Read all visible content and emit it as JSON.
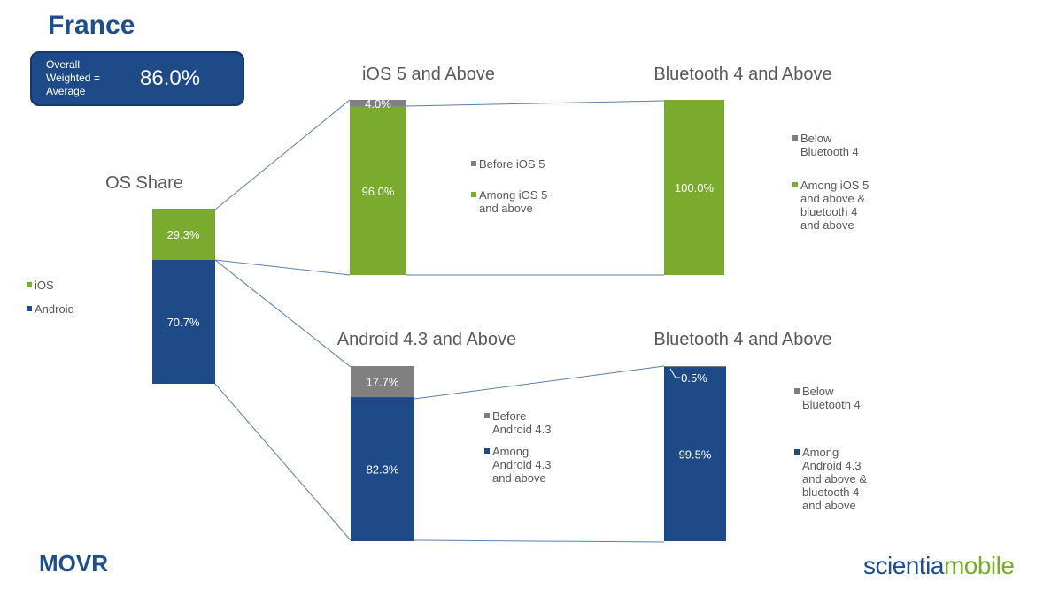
{
  "page": {
    "country": "France",
    "overall_label_lines": [
      "Overall",
      "Weighted =",
      "Average"
    ],
    "overall_value": "86.0%",
    "footer_brand": "MOVR",
    "logo_part1": "scientia",
    "logo_part2": "mobile"
  },
  "colors": {
    "ios": "#7aaa2e",
    "android": "#1e4b87",
    "below": "#808080",
    "connector": "#5b7fae"
  },
  "chart_data": [
    {
      "type": "bar",
      "title": "OS Share",
      "categories": [
        "OS Share"
      ],
      "series": [
        {
          "name": "iOS",
          "values": [
            29.3
          ],
          "label": "29.3%"
        },
        {
          "name": "Android",
          "values": [
            70.7
          ],
          "label": "70.7%"
        }
      ],
      "legend_position": "left"
    },
    {
      "type": "bar",
      "title": "iOS 5 and Above",
      "series": [
        {
          "name": "Before iOS 5",
          "values": [
            4.0
          ],
          "label": "4.0%"
        },
        {
          "name": "Among  iOS 5 and above",
          "values": [
            96.0
          ],
          "label": "96.0%"
        }
      ],
      "legend_position": "right"
    },
    {
      "type": "bar",
      "title": "Bluetooth 4 and Above",
      "series": [
        {
          "name": "Below Bluetooth 4",
          "values": [
            0.0
          ],
          "label": ""
        },
        {
          "name": "Among iOS 5 and above & bluetooth 4 and above",
          "values": [
            100.0
          ],
          "label": "100.0%"
        }
      ],
      "legend_position": "right"
    },
    {
      "type": "bar",
      "title": "Android 4.3 and Above",
      "series": [
        {
          "name": "Before Android 4.3",
          "values": [
            17.7
          ],
          "label": "17.7%"
        },
        {
          "name": "Among Android 4.3 and above",
          "values": [
            82.3
          ],
          "label": "82.3%"
        }
      ],
      "legend_position": "right"
    },
    {
      "type": "bar",
      "title": "Bluetooth 4 and Above",
      "series": [
        {
          "name": "Below Bluetooth 4",
          "values": [
            0.5
          ],
          "label": "0.5%"
        },
        {
          "name": "Among Android 4.3 and above & bluetooth 4 and above",
          "values": [
            99.5
          ],
          "label": "99.5%"
        }
      ],
      "legend_position": "right"
    }
  ],
  "legends": {
    "os": [
      "iOS",
      "Android"
    ],
    "ios5": [
      [
        "Before iOS 5"
      ],
      [
        "Among  iOS 5",
        "and above"
      ]
    ],
    "ios_bt": [
      [
        "Below",
        "Bluetooth 4"
      ],
      [
        "Among iOS 5",
        "and above &",
        "bluetooth 4",
        "and above"
      ]
    ],
    "android43": [
      [
        "Before",
        "Android 4.3"
      ],
      [
        "Among",
        "Android 4.3",
        "and above"
      ]
    ],
    "android_bt": [
      [
        "Below",
        "Bluetooth 4"
      ],
      [
        "Among",
        "Android 4.3",
        "and above &",
        "bluetooth 4",
        "and above"
      ]
    ]
  }
}
